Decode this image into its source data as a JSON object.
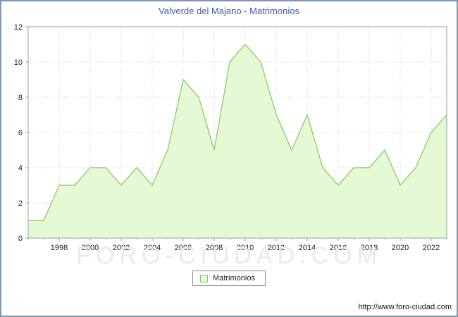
{
  "title": "Valverde del Majano - Matrimonios",
  "legend": {
    "label": "Matrimonios"
  },
  "footer": {
    "url": "http://www.foro-ciudad.com"
  },
  "watermark": "FORO-CIUDAD.COM",
  "colors": {
    "title": "#3b63a8",
    "area_fill": "#e6f9d5",
    "area_stroke": "#8ed06e",
    "grid": "#cfcfcf",
    "axis": "#9aa0a6",
    "text": "#222222"
  },
  "chart_data": {
    "type": "area",
    "title": "Valverde del Majano - Matrimonios",
    "xlabel": "",
    "ylabel": "",
    "x": [
      1996,
      1997,
      1998,
      1999,
      2000,
      2001,
      2002,
      2003,
      2004,
      2005,
      2006,
      2007,
      2008,
      2009,
      2010,
      2011,
      2012,
      2013,
      2014,
      2015,
      2016,
      2017,
      2018,
      2019,
      2020,
      2021,
      2022,
      2023
    ],
    "values": [
      1,
      1,
      3,
      3,
      4,
      4,
      3,
      4,
      3,
      5,
      9,
      8,
      5,
      10,
      11,
      10,
      7,
      5,
      7,
      4,
      3,
      4,
      4,
      5,
      3,
      4,
      6,
      7
    ],
    "ylim": [
      0,
      12
    ],
    "yticks": [
      0,
      2,
      4,
      6,
      8,
      10,
      12
    ],
    "xtick_labels": [
      1998,
      2000,
      2002,
      2004,
      2006,
      2008,
      2010,
      2012,
      2014,
      2016,
      2018,
      2020,
      2022
    ],
    "grid": true,
    "legend_position": "bottom",
    "series_name": "Matrimonios"
  }
}
